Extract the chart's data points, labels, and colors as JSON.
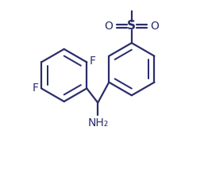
{
  "bg_color": "#ffffff",
  "line_color": "#2b2d6b",
  "line_width": 1.6,
  "font_size_label": 10,
  "font_size_nh2": 10,
  "font_size_s": 11,
  "figsize": [
    2.62,
    2.13
  ],
  "dpi": 100,
  "xlim": [
    0,
    10
  ],
  "ylim": [
    0,
    8.2
  ]
}
